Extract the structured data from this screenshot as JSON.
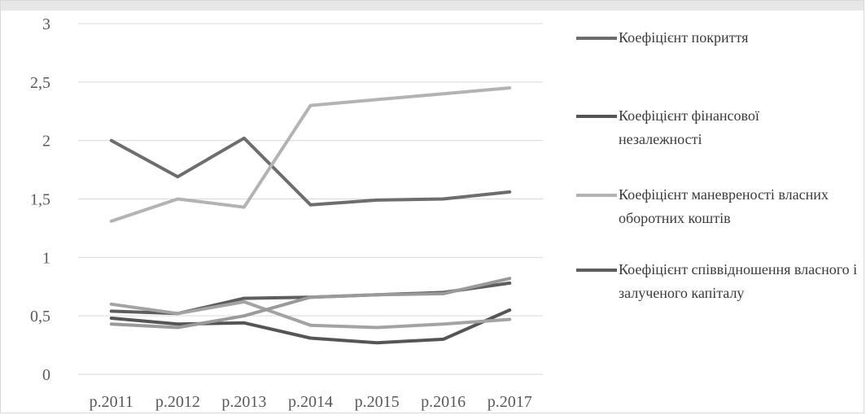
{
  "chart_data": {
    "type": "line",
    "categories": [
      "р.2011",
      "р.2012",
      "р.2013",
      "р.2014",
      "р.2015",
      "р.2016",
      "р.2017"
    ],
    "ylim": [
      0,
      3
    ],
    "yticks": [
      0,
      0.5,
      1,
      1.5,
      2,
      2.5,
      3
    ],
    "ytick_labels": [
      "0",
      "0,5",
      "1",
      "1,5",
      "2",
      "2,5",
      "3"
    ],
    "grid": true,
    "legend_position": "right",
    "series": [
      {
        "name": "Коефіцієнт покриття",
        "color": "#6d6d6d",
        "values": [
          2.0,
          1.69,
          2.02,
          1.45,
          1.49,
          1.5,
          1.56
        ]
      },
      {
        "name": "Коефіцієнт фінансової незалежності",
        "color": "#555555",
        "values": [
          0.48,
          0.43,
          0.44,
          0.31,
          0.27,
          0.3,
          0.55
        ]
      },
      {
        "name": "Коефіцієнт маневреності власних оборотних коштів",
        "color": "#b3b3b3",
        "values": [
          1.31,
          1.5,
          1.43,
          2.3,
          2.35,
          2.4,
          2.45
        ]
      },
      {
        "name": "Коефіцієнт співвідношення власного і залученого капіталу",
        "color": "#5e5e5e",
        "values": [
          0.54,
          0.52,
          0.65,
          0.66,
          0.68,
          0.7,
          0.78
        ]
      },
      {
        "color": "#a3a3a3",
        "values": [
          0.6,
          0.52,
          0.62,
          0.42,
          0.4,
          0.43,
          0.47
        ]
      },
      {
        "color": "#9a9a9a",
        "values": [
          0.43,
          0.4,
          0.5,
          0.66,
          0.68,
          0.69,
          0.82
        ]
      }
    ],
    "legend": [
      {
        "label": "Коефіцієнт покриття",
        "color": "#6d6d6d"
      },
      {
        "label": "Коефіцієнт фінансової незалежності",
        "color": "#555555"
      },
      {
        "label": "Коефіцієнт маневреності власних оборотних коштів",
        "color": "#b3b3b3"
      },
      {
        "label": "Коефіцієнт співвідношення власного і залученого капіталу",
        "color": "#5e5e5e"
      }
    ]
  }
}
